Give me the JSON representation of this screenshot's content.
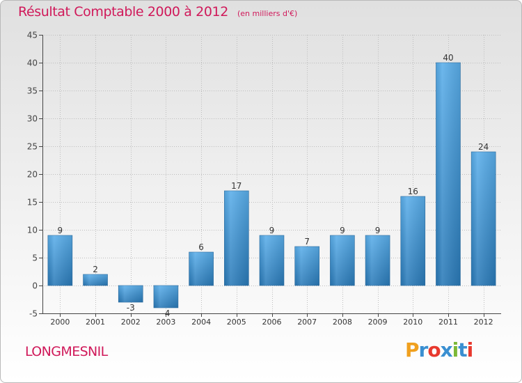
{
  "header": {
    "title": "Résultat Comptable 2000 à 2012",
    "subtitle": "(en milliers d'€)"
  },
  "footer": {
    "commune": "LONGMESNIL",
    "logo_text": "Proxiti",
    "logo_colors": [
      "#f0a01e",
      "#3a8fd1",
      "#e8392e",
      "#3a8fd1",
      "#7cb837",
      "#3a8fd1",
      "#e8392e"
    ]
  },
  "colors": {
    "bar_light": "#5aaeea",
    "bar_dark": "#2a7ab8",
    "axis": "#444444",
    "grid": "#bdbdbd",
    "title": "#d0195a"
  },
  "chart_data": {
    "type": "bar",
    "title": "Résultat Comptable 2000 à 2012",
    "subtitle": "(en milliers d'€)",
    "xlabel": "",
    "ylabel": "",
    "categories": [
      "2000",
      "2001",
      "2002",
      "2003",
      "2004",
      "2005",
      "2006",
      "2007",
      "2008",
      "2009",
      "2010",
      "2011",
      "2012"
    ],
    "values": [
      9,
      2,
      -3,
      -4,
      6,
      17,
      9,
      7,
      9,
      9,
      16,
      40,
      24
    ],
    "value_labels": [
      "9",
      "2",
      "-3",
      "-4",
      "6",
      "17",
      "9",
      "7",
      "9",
      "9",
      "16",
      "40",
      "24"
    ],
    "ylim": [
      -5,
      45
    ],
    "yticks": [
      -5,
      0,
      5,
      10,
      15,
      20,
      25,
      30,
      35,
      40,
      45
    ],
    "grid": true,
    "legend": "none"
  }
}
